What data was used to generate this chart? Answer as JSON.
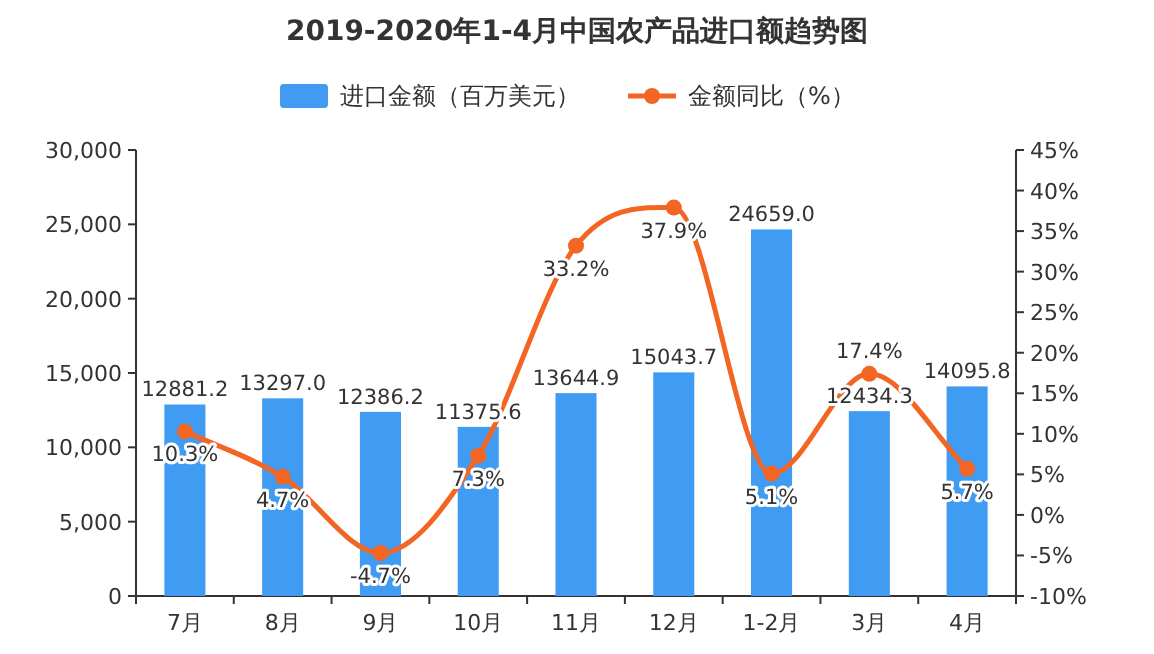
{
  "chart_data": {
    "type": "bar",
    "title": "2019-2020年1-4月中国农产品进口额趋势图",
    "categories": [
      "7月",
      "8月",
      "9月",
      "10月",
      "11月",
      "12月",
      "1-2月",
      "3月",
      "4月"
    ],
    "series": [
      {
        "name": "进口金额（百万美元）",
        "color": "#3f9cf2",
        "values": [
          12881.2,
          13297.0,
          12386.2,
          11375.6,
          13644.9,
          15043.7,
          24659.0,
          12434.3,
          14095.8
        ],
        "value_labels": [
          "12881.2",
          "13297.0",
          "12386.2",
          "11375.6",
          "13644.9",
          "15043.7",
          "24659.0",
          "12434.3",
          "14095.8"
        ]
      },
      {
        "name": "金额同比（%）",
        "type": "line",
        "axis": "y2",
        "color": "#f26522",
        "marker": "circle",
        "values": [
          10.3,
          4.7,
          -4.7,
          7.3,
          33.2,
          37.9,
          5.1,
          17.4,
          5.7
        ],
        "value_labels": [
          "10.3%",
          "4.7%",
          "-4.7%",
          "7.3%",
          "33.2%",
          "37.9%",
          "5.1%",
          "17.4%",
          "5.7%"
        ]
      }
    ],
    "ylim": [
      0,
      30000
    ],
    "yticks": [
      0,
      {
        "value": 5000,
        "label": "5,000"
      },
      {
        "value": 10000,
        "label": "10,000"
      },
      {
        "value": 15000,
        "label": "15,000"
      },
      {
        "value": 20000,
        "label": "20,000"
      },
      {
        "value": 25000,
        "label": "25,000"
      },
      {
        "value": 30000,
        "label": "30,000"
      }
    ],
    "y2lim": [
      -10,
      45
    ],
    "y2ticks": [
      {
        "value": -10,
        "label": "-10%"
      },
      {
        "value": -5,
        "label": "-5%"
      },
      {
        "value": 0,
        "label": "0%"
      },
      {
        "value": 5,
        "label": "5%"
      },
      {
        "value": 10,
        "label": "10%"
      },
      {
        "value": 15,
        "label": "15%"
      },
      {
        "value": 20,
        "label": "20%"
      },
      {
        "value": 25,
        "label": "25%"
      },
      {
        "value": 30,
        "label": "30%"
      },
      {
        "value": 35,
        "label": "35%"
      },
      {
        "value": 40,
        "label": "40%"
      },
      {
        "value": 45,
        "label": "45%"
      }
    ],
    "legend": "top",
    "grid": false
  }
}
